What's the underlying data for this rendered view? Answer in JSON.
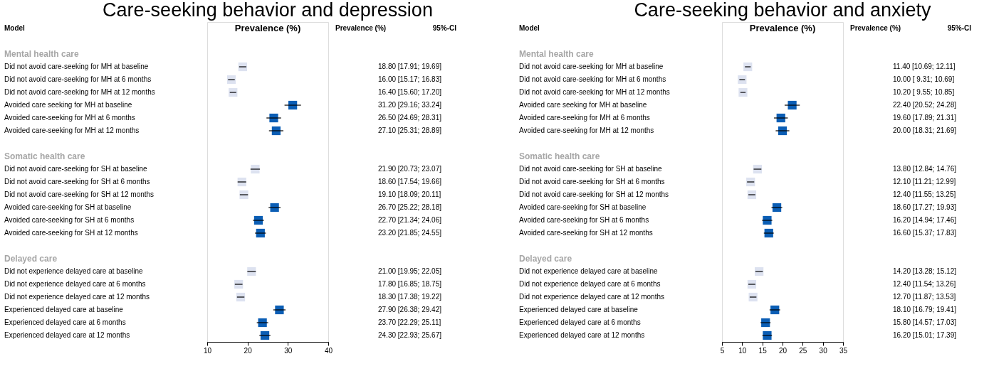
{
  "chart_data": [
    {
      "type": "scatter",
      "orientation": "horizontal",
      "marker": "square",
      "grid": false,
      "title": "Care-seeking behavior and depression",
      "xlabel": "Prevalence (%)",
      "annotations": [
        "Model",
        "Prevalence (%)",
        "95%-CI"
      ],
      "categories": [
        null,
        "Mental health care",
        "Did not avoid care-seeking for MH at baseline",
        "Did not avoid care-seeking for MH at 6 months",
        "Did not avoid care-seeking for MH at 12 months",
        "Avoided care seeking for MH at baseline",
        "Avoided care-seeking for MH at 6 months",
        "Avoided care-seeking for MH at 12 months",
        null,
        "Somatic health care",
        "Did not avoid care-seeking for SH at baseline",
        "Did not avoid care-seeking for SH at 6 months",
        "Did not avoid care-seeking for SH at 12 months",
        "Avoided care-seeking for SH at baseline",
        "Avoided care-seeking for SH at 6 months",
        "Avoided care-seeking for SH at 12 months",
        null,
        "Delayed care",
        "Did not experience delayed care at baseline",
        "Did not experience delayed care at 6 months",
        "Did not experience delayed care at 12 months",
        "Experienced delayed care at baseline",
        "Experienced delayed care at 6 months",
        "Experienced delayed care at 12 months"
      ],
      "values": [
        null,
        null,
        18.8,
        16.0,
        16.4,
        31.2,
        26.5,
        27.1,
        null,
        null,
        21.9,
        18.6,
        19.1,
        26.7,
        22.7,
        23.2,
        null,
        null,
        21.0,
        17.8,
        18.3,
        27.9,
        23.7,
        24.3
      ],
      "errors": [
        null,
        null,
        [
          17.91,
          19.69
        ],
        [
          15.17,
          16.83
        ],
        [
          15.6,
          17.2
        ],
        [
          29.16,
          33.24
        ],
        [
          24.69,
          28.31
        ],
        [
          25.31,
          28.89
        ],
        null,
        null,
        [
          20.73,
          23.07
        ],
        [
          17.54,
          19.66
        ],
        [
          18.09,
          20.11
        ],
        [
          25.22,
          28.18
        ],
        [
          21.34,
          24.06
        ],
        [
          21.85,
          24.55
        ],
        null,
        null,
        [
          19.95,
          22.05
        ],
        [
          16.85,
          18.75
        ],
        [
          17.38,
          19.22
        ],
        [
          26.38,
          29.42
        ],
        [
          22.29,
          25.11
        ],
        [
          22.93,
          25.67
        ]
      ],
      "value_labels": [
        null,
        null,
        "18.80 [17.91; 19.69]",
        "16.00 [15.17; 16.83]",
        "16.40 [15.60; 17.20]",
        "31.20 [29.16; 33.24]",
        "26.50 [24.69; 28.31]",
        "27.10 [25.31; 28.89]",
        null,
        null,
        "21.90 [20.73; 23.07]",
        "18.60 [17.54; 19.66]",
        "19.10 [18.09; 20.11]",
        "26.70 [25.22; 28.18]",
        "22.70 [21.34; 24.06]",
        "23.20 [21.85; 24.55]",
        null,
        null,
        "21.00 [19.95; 22.05]",
        "17.80 [16.85; 18.75]",
        "18.30 [17.38; 19.22]",
        "27.90 [26.38; 29.42]",
        "23.70 [22.29; 25.11]",
        "24.30 [22.93; 25.67]"
      ],
      "colors": [
        null,
        null,
        "#dde2f0",
        "#dde2f0",
        "#dde2f0",
        "#0b5eb5",
        "#0b5eb5",
        "#0b5eb5",
        null,
        null,
        "#dde2f0",
        "#dde2f0",
        "#dde2f0",
        "#0b5eb5",
        "#0b5eb5",
        "#0b5eb5",
        null,
        null,
        "#dde2f0",
        "#dde2f0",
        "#dde2f0",
        "#0b5eb5",
        "#0b5eb5",
        "#0b5eb5"
      ],
      "xlim": [
        10,
        40
      ],
      "xticks": [
        10,
        20,
        30,
        40
      ]
    },
    {
      "type": "scatter",
      "orientation": "horizontal",
      "marker": "square",
      "grid": false,
      "title": "Care-seeking behavior and anxiety",
      "xlabel": "Prevalence (%)",
      "annotations": [
        "Model",
        "Prevalence (%)",
        "95%-CI"
      ],
      "categories": [
        null,
        "Mental health care",
        "Did not avoid care-seeking for MH at baseline",
        "Did not avoid care-seeking for MH at 6 months",
        "Did not avoid care-seeking for MH at 12 months",
        "Avoided care seeking for MH at baseline",
        "Avoided care-seeking for MH at 6 months",
        "Avoided care-seeking for MH at 12 months",
        null,
        "Somatic health care",
        "Did not avoid care-seeking for SH at baseline",
        "Did not avoid care-seeking for SH at 6 months",
        "Did not avoid care-seeking for SH at 12 months",
        "Avoided care-seeking for SH at baseline",
        "Avoided care-seeking for SH at 6 months",
        "Avoided care-seeking for SH at 12 months",
        null,
        "Delayed care",
        "Did not experience delayed care at baseline",
        "Did not experience delayed care at 6 months",
        "Did not experience delayed care at 12 months",
        "Experienced delayed care at baseline",
        "Experienced delayed care at 6 months",
        "Experienced delayed care at 12 months"
      ],
      "values": [
        null,
        null,
        11.4,
        10.0,
        10.2,
        22.4,
        19.6,
        20.0,
        null,
        null,
        13.8,
        12.1,
        12.4,
        18.6,
        16.2,
        16.6,
        null,
        null,
        14.2,
        12.4,
        12.7,
        18.1,
        15.8,
        16.2
      ],
      "errors": [
        null,
        null,
        [
          10.69,
          12.11
        ],
        [
          9.31,
          10.69
        ],
        [
          9.55,
          10.85
        ],
        [
          20.52,
          24.28
        ],
        [
          17.89,
          21.31
        ],
        [
          18.31,
          21.69
        ],
        null,
        null,
        [
          12.84,
          14.76
        ],
        [
          11.21,
          12.99
        ],
        [
          11.55,
          13.25
        ],
        [
          17.27,
          19.93
        ],
        [
          14.94,
          17.46
        ],
        [
          15.37,
          17.83
        ],
        null,
        null,
        [
          13.28,
          15.12
        ],
        [
          11.54,
          13.26
        ],
        [
          11.87,
          13.53
        ],
        [
          16.79,
          19.41
        ],
        [
          14.57,
          17.03
        ],
        [
          15.01,
          17.39
        ]
      ],
      "value_labels": [
        null,
        null,
        "11.40 [10.69; 12.11]",
        "10.00 [ 9.31; 10.69]",
        "10.20 [ 9.55; 10.85]",
        "22.40 [20.52; 24.28]",
        "19.60 [17.89; 21.31]",
        "20.00 [18.31; 21.69]",
        null,
        null,
        "13.80 [12.84; 14.76]",
        "12.10 [11.21; 12.99]",
        "12.40 [11.55; 13.25]",
        "18.60 [17.27; 19.93]",
        "16.20 [14.94; 17.46]",
        "16.60 [15.37; 17.83]",
        null,
        null,
        "14.20 [13.28; 15.12]",
        "12.40 [11.54; 13.26]",
        "12.70 [11.87; 13.53]",
        "18.10 [16.79; 19.41]",
        "15.80 [14.57; 17.03]",
        "16.20 [15.01; 17.39]"
      ],
      "colors": [
        null,
        null,
        "#dde2f0",
        "#dde2f0",
        "#dde2f0",
        "#0b5eb5",
        "#0b5eb5",
        "#0b5eb5",
        null,
        null,
        "#dde2f0",
        "#dde2f0",
        "#dde2f0",
        "#0b5eb5",
        "#0b5eb5",
        "#0b5eb5",
        null,
        null,
        "#dde2f0",
        "#dde2f0",
        "#dde2f0",
        "#0b5eb5",
        "#0b5eb5",
        "#0b5eb5"
      ],
      "xlim": [
        5,
        35
      ],
      "xticks": [
        5,
        10,
        15,
        20,
        25,
        30,
        35
      ]
    }
  ]
}
